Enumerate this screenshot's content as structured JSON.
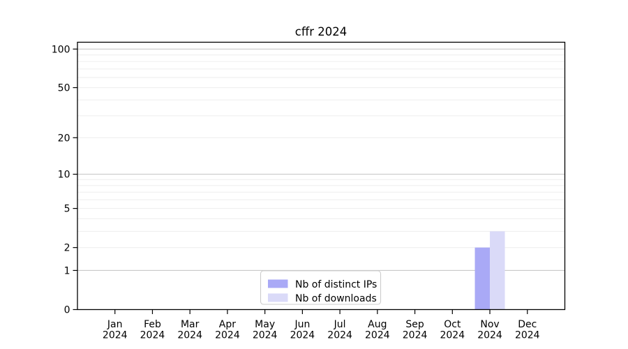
{
  "figure": {
    "background": "#ffffff"
  },
  "chart_data": {
    "type": "bar",
    "title": "cffr 2024",
    "categories": [
      "Jan",
      "Feb",
      "Mar",
      "Apr",
      "May",
      "Jun",
      "Jul",
      "Aug",
      "Sep",
      "Oct",
      "Nov",
      "Dec"
    ],
    "x_tick_second_line": "2024",
    "series": [
      {
        "name": "Nb of distinct IPs",
        "color": "#a9a9f6",
        "values": [
          0,
          0,
          0,
          0,
          0,
          0,
          0,
          0,
          0,
          0,
          2,
          0
        ]
      },
      {
        "name": "Nb of downloads",
        "color": "#dadaf8",
        "values": [
          0,
          0,
          0,
          0,
          0,
          0,
          0,
          0,
          0,
          0,
          3,
          0
        ]
      }
    ],
    "xlabel": "",
    "ylabel": "",
    "yscale": "log1p",
    "ylim": [
      0,
      113
    ],
    "yticks": [
      0,
      1,
      2,
      5,
      10,
      20,
      50,
      100
    ],
    "major_gridlines": [
      1,
      10,
      100
    ],
    "minor_gridlines": [
      2,
      3,
      4,
      5,
      6,
      7,
      8,
      9,
      20,
      30,
      40,
      50,
      60,
      70,
      80,
      90
    ],
    "grid": "horizontal",
    "legend": {
      "position": "lower center",
      "entries": [
        "Nb of distinct IPs",
        "Nb of downloads"
      ]
    }
  },
  "colors": {
    "major_grid": "#c9c9c9",
    "minor_grid": "#efefef",
    "axis_line": "#000000",
    "text": "#000000",
    "legend_border": "#cccccc",
    "legend_background": "#ffffff"
  }
}
